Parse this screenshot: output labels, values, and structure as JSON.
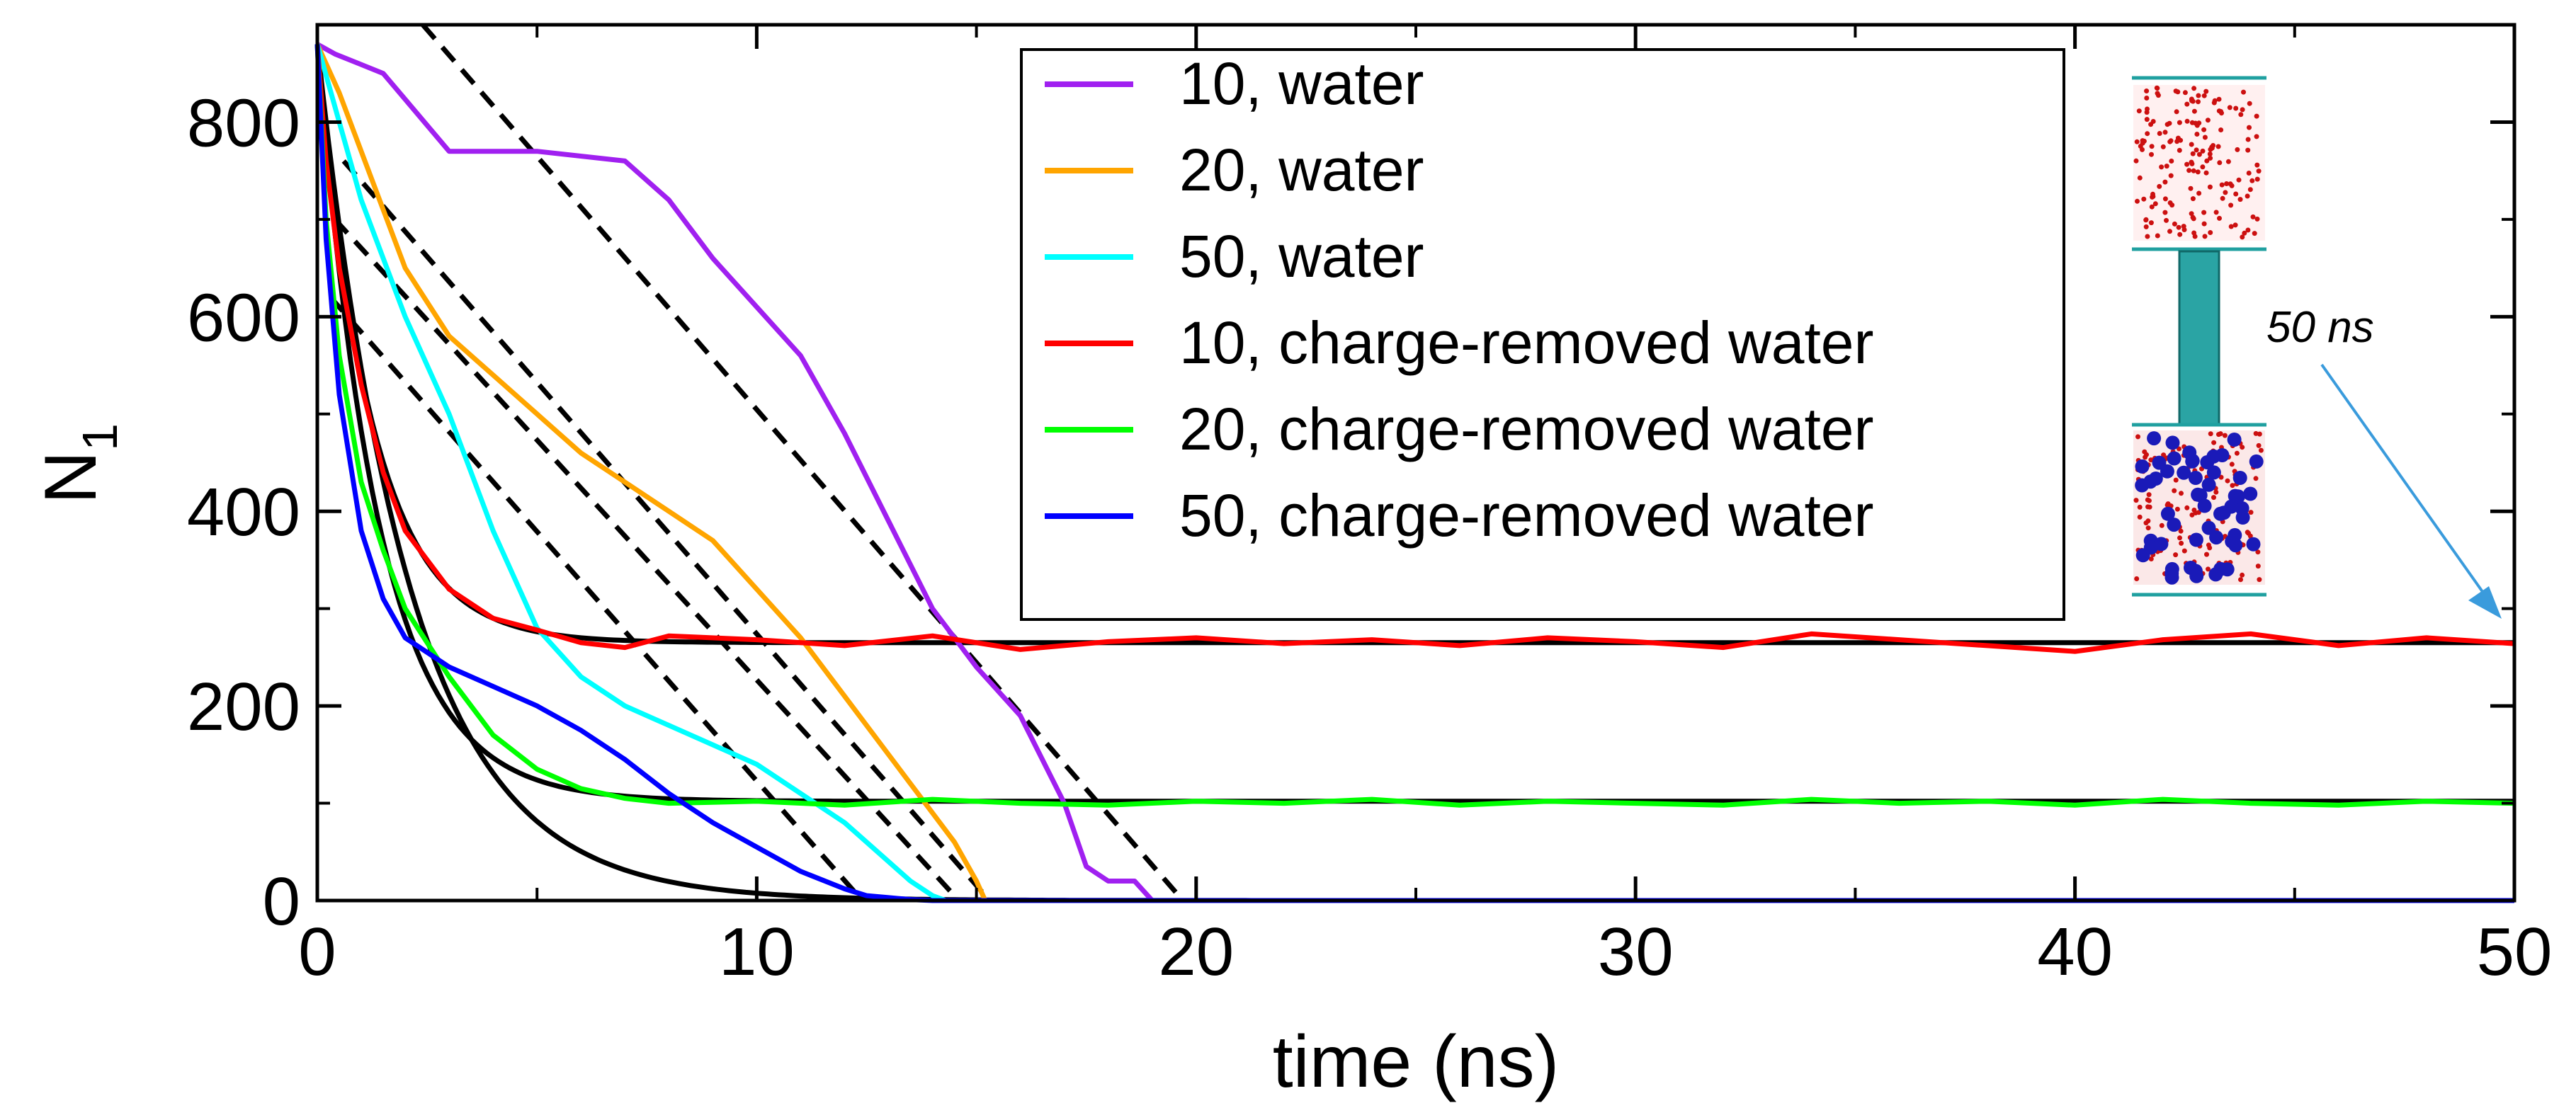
{
  "chart_data": {
    "type": "line",
    "title": "",
    "xlabel": "time (ns)",
    "ylabel_main": "N",
    "ylabel_sub": "1",
    "xlim": [
      0,
      50
    ],
    "ylim": [
      0,
      900
    ],
    "x_ticks": [
      0,
      10,
      20,
      30,
      40,
      50
    ],
    "y_ticks": [
      0,
      200,
      400,
      600,
      800
    ],
    "grid": false,
    "legend_position": "top-center",
    "annotation": "50 ns",
    "series": [
      {
        "name": "10, water",
        "color": "#a020f0",
        "x": [
          0,
          0.4,
          1.5,
          3.0,
          5.0,
          7.0,
          8.0,
          9.0,
          10.0,
          11.0,
          12.0,
          13.0,
          14.0,
          15.0,
          16.0,
          17.0,
          17.5,
          18.0,
          18.6,
          19.0,
          50
        ],
        "y": [
          880,
          870,
          850,
          770,
          770,
          760,
          720,
          660,
          610,
          560,
          480,
          390,
          300,
          240,
          190,
          100,
          35,
          20,
          20,
          0,
          0
        ]
      },
      {
        "name": "20, water",
        "color": "#ffa500",
        "x": [
          0,
          0.5,
          1.0,
          2.0,
          3.0,
          4.0,
          5.0,
          6.0,
          7.0,
          8.0,
          9.0,
          10.0,
          11.0,
          12.0,
          13.0,
          14.0,
          14.5,
          15.0,
          15.2,
          50
        ],
        "y": [
          880,
          830,
          770,
          650,
          580,
          540,
          500,
          460,
          430,
          400,
          370,
          320,
          270,
          210,
          150,
          90,
          60,
          20,
          0,
          0
        ]
      },
      {
        "name": "50, water",
        "color": "#00ffff",
        "x": [
          0,
          0.5,
          1.0,
          2.0,
          3.0,
          4.0,
          5.0,
          6.0,
          7.0,
          8.0,
          9.0,
          10.0,
          11.0,
          12.0,
          13.0,
          13.5,
          14.0,
          14.3,
          50
        ],
        "y": [
          880,
          800,
          720,
          600,
          500,
          380,
          280,
          230,
          200,
          180,
          160,
          140,
          110,
          80,
          40,
          20,
          5,
          0,
          0
        ]
      },
      {
        "name": "10, charge-removed water",
        "color": "#ff0000",
        "x": [
          0,
          0.2,
          0.5,
          1.0,
          1.5,
          2.0,
          3.0,
          4.0,
          5.0,
          6.0,
          7.0,
          8.0,
          10,
          12,
          14,
          16,
          18,
          20,
          22,
          24,
          26,
          28,
          30,
          32,
          34,
          36,
          38,
          40,
          42,
          44,
          46,
          48,
          50
        ],
        "y": [
          880,
          760,
          650,
          530,
          440,
          380,
          320,
          290,
          278,
          265,
          260,
          272,
          268,
          262,
          272,
          258,
          266,
          270,
          264,
          268,
          262,
          270,
          266,
          260,
          274,
          268,
          262,
          256,
          268,
          274,
          262,
          270,
          264
        ]
      },
      {
        "name": "20, charge-removed water",
        "color": "#00ff00",
        "x": [
          0,
          0.2,
          0.5,
          1.0,
          1.5,
          2.0,
          3.0,
          4.0,
          5.0,
          6.0,
          7.0,
          8.0,
          10,
          12,
          14,
          16,
          18,
          20,
          22,
          24,
          26,
          28,
          30,
          32,
          34,
          36,
          38,
          40,
          42,
          44,
          46,
          48,
          50
        ],
        "y": [
          880,
          700,
          560,
          430,
          360,
          300,
          230,
          170,
          135,
          115,
          105,
          100,
          102,
          98,
          104,
          100,
          98,
          102,
          100,
          104,
          98,
          102,
          100,
          98,
          104,
          100,
          102,
          98,
          104,
          100,
          98,
          102,
          100
        ]
      },
      {
        "name": "50, charge-removed water",
        "color": "#0000ff",
        "x": [
          0,
          0.2,
          0.5,
          1.0,
          1.5,
          2.0,
          3.0,
          4.0,
          5.0,
          6.0,
          7.0,
          8.0,
          9.0,
          10.0,
          11.0,
          12.0,
          12.5,
          13.0,
          13.5,
          14.0,
          50
        ],
        "y": [
          880,
          680,
          520,
          380,
          310,
          270,
          240,
          220,
          200,
          175,
          145,
          110,
          80,
          55,
          30,
          12,
          5,
          3,
          1,
          0,
          0
        ]
      }
    ],
    "fits": [
      {
        "label": "exponential-fit-10-charge-removed",
        "kind": "exponential",
        "y0": 880,
        "plateau": 265,
        "tau": 1.25
      },
      {
        "label": "exponential-fit-20-charge-removed",
        "kind": "exponential",
        "y0": 880,
        "plateau": 102,
        "tau": 1.4
      },
      {
        "label": "exponential-fit-50-charge-removed",
        "kind": "exponential",
        "y0": 880,
        "plateau": 0,
        "tau": 2.1
      },
      {
        "label": "linear-fit-10-water",
        "kind": "linear",
        "x": [
          2.4,
          19.7
        ],
        "y": [
          900,
          0
        ]
      },
      {
        "label": "linear-fit-20-water",
        "kind": "linear",
        "x": [
          0.6,
          15.3
        ],
        "y": [
          760,
          0
        ]
      },
      {
        "label": "linear-fit-50-water",
        "kind": "linear",
        "x": [
          0.4,
          14.6
        ],
        "y": [
          700,
          0
        ]
      },
      {
        "label": "linear-fit-50-charge-removed",
        "kind": "linear",
        "x": [
          0.3,
          12.4
        ],
        "y": [
          620,
          0
        ]
      }
    ]
  }
}
